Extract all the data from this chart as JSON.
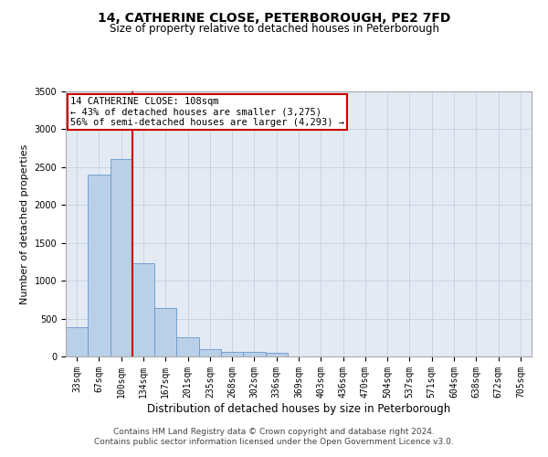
{
  "title": "14, CATHERINE CLOSE, PETERBOROUGH, PE2 7FD",
  "subtitle": "Size of property relative to detached houses in Peterborough",
  "xlabel": "Distribution of detached houses by size in Peterborough",
  "ylabel": "Number of detached properties",
  "footer_line1": "Contains HM Land Registry data © Crown copyright and database right 2024.",
  "footer_line2": "Contains public sector information licensed under the Open Government Licence v3.0.",
  "bin_labels": [
    "33sqm",
    "67sqm",
    "100sqm",
    "134sqm",
    "167sqm",
    "201sqm",
    "235sqm",
    "268sqm",
    "302sqm",
    "336sqm",
    "369sqm",
    "403sqm",
    "436sqm",
    "470sqm",
    "504sqm",
    "537sqm",
    "571sqm",
    "604sqm",
    "638sqm",
    "672sqm",
    "705sqm"
  ],
  "bar_values": [
    390,
    2400,
    2610,
    1230,
    640,
    250,
    100,
    65,
    55,
    45,
    0,
    0,
    0,
    0,
    0,
    0,
    0,
    0,
    0,
    0,
    0
  ],
  "bar_color": "#bad0e8",
  "bar_edge_color": "#6699cc",
  "red_line_bin_index": 2,
  "annotation_text1": "14 CATHERINE CLOSE: 108sqm",
  "annotation_text2": "← 43% of detached houses are smaller (3,275)",
  "annotation_text3": "56% of semi-detached houses are larger (4,293) →",
  "annotation_box_facecolor": "white",
  "annotation_box_edgecolor": "#cc0000",
  "red_line_color": "#cc0000",
  "ylim": [
    0,
    3500
  ],
  "yticks": [
    0,
    500,
    1000,
    1500,
    2000,
    2500,
    3000,
    3500
  ],
  "grid_color": "#c8d4e4",
  "bg_color": "#e4eaf4",
  "title_fontsize": 10,
  "subtitle_fontsize": 8.5,
  "ylabel_fontsize": 8,
  "xlabel_fontsize": 8.5,
  "tick_fontsize": 7,
  "footer_fontsize": 6.5,
  "annotation_fontsize": 7.5
}
